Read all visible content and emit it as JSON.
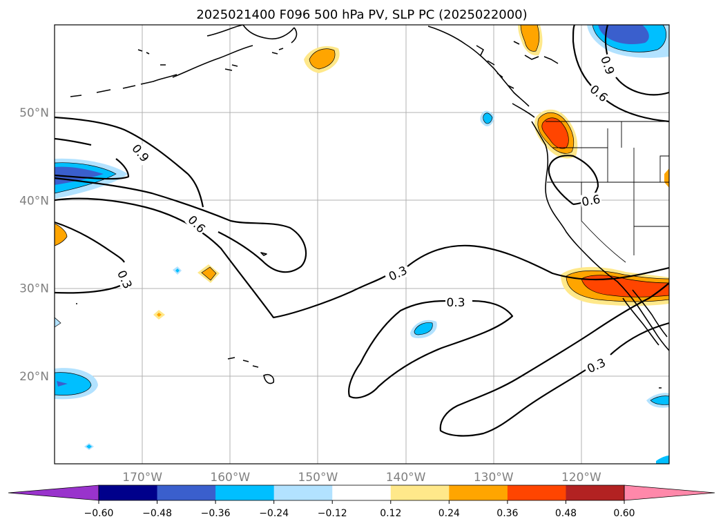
{
  "title": "2025021400 F096 500 hPa PV, SLP PC (2025022000)",
  "map": {
    "lon_range": [
      -180,
      -110
    ],
    "lat_range": [
      10,
      60
    ],
    "lat_ticks": [
      {
        "value": 50,
        "label": "50°N"
      },
      {
        "value": 40,
        "label": "40°N"
      },
      {
        "value": 30,
        "label": "30°N"
      },
      {
        "value": 20,
        "label": "20°N"
      }
    ],
    "lon_ticks": [
      {
        "value": -170,
        "label": "170°W"
      },
      {
        "value": -160,
        "label": "160°W"
      },
      {
        "value": -150,
        "label": "150°W"
      },
      {
        "value": -140,
        "label": "140°W"
      },
      {
        "value": -130,
        "label": "130°W"
      },
      {
        "value": -120,
        "label": "120°W"
      }
    ],
    "grid": true
  },
  "colorbar": {
    "boundaries": [
      -0.6,
      -0.48,
      -0.36,
      -0.24,
      -0.12,
      0.12,
      0.24,
      0.36,
      0.48,
      0.6
    ],
    "labels": [
      "−0.60",
      "−0.48",
      "−0.36",
      "−0.24",
      "−0.12",
      "0.12",
      "0.24",
      "0.36",
      "0.48",
      "0.60"
    ],
    "colors": [
      "#9933cc",
      "#00008b",
      "#3a5fcd",
      "#00bfff",
      "#b2e2ff",
      "#ffffff",
      "#ffe88a",
      "#ffa500",
      "#ff4500",
      "#b22222",
      "#ff88aa"
    ],
    "extend": "both"
  },
  "contours": {
    "levels": [
      0.3,
      0.6,
      0.9
    ],
    "labels": [
      {
        "text": "0.9",
        "lon": -170.2,
        "lat": 45.4,
        "angle": 50
      },
      {
        "text": "0.6",
        "lon": -163.8,
        "lat": 37.3,
        "angle": 45
      },
      {
        "text": "0.3",
        "lon": -172.0,
        "lat": 31.0,
        "angle": 65
      },
      {
        "text": "0.3",
        "lon": -140.9,
        "lat": 31.7,
        "angle": -25
      },
      {
        "text": "0.3",
        "lon": -134.3,
        "lat": 28.4,
        "angle": 0
      },
      {
        "text": "0.3",
        "lon": -118.3,
        "lat": 21.2,
        "angle": -25
      },
      {
        "text": "0.6",
        "lon": -118.9,
        "lat": 40.0,
        "angle": -10
      },
      {
        "text": "0.6",
        "lon": -118.0,
        "lat": 52.2,
        "angle": 40
      },
      {
        "text": "0.9",
        "lon": -117.0,
        "lat": 55.4,
        "angle": 70
      }
    ]
  }
}
